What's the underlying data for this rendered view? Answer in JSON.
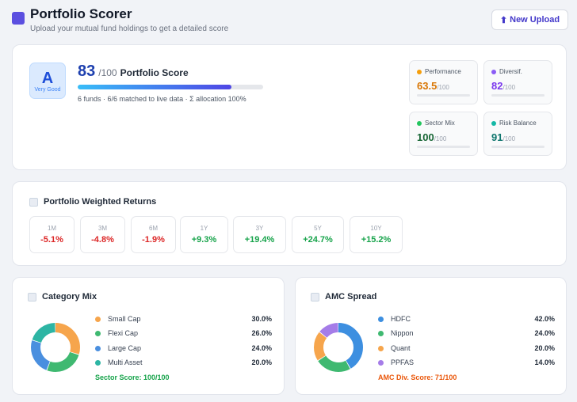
{
  "header": {
    "title": "Portfolio Scorer",
    "subtitle": "Upload your mutual fund holdings to get a detailed score",
    "upload_icon": "up-arrow-icon",
    "upload_label": "New Upload"
  },
  "score": {
    "grade": "A",
    "grade_label": "Very Good",
    "value": "83",
    "max": "/100",
    "title": "Portfolio Score",
    "progress": 0.83,
    "meta": "6 funds · 6/6 matched to live data · Σ allocation 100%"
  },
  "metrics": [
    {
      "label": "Performance",
      "value": "63.5",
      "max": "/100",
      "color": "#f59e0b",
      "value_color": "#d97706"
    },
    {
      "label": "Diversif.",
      "value": "82",
      "max": "/100",
      "color": "#8b5cf6",
      "value_color": "#7c3aed"
    },
    {
      "label": "Sector Mix",
      "value": "100",
      "max": "/100",
      "color": "#22c55e",
      "value_color": "#166534"
    },
    {
      "label": "Risk Balance",
      "value": "91",
      "max": "/100",
      "color": "#14b8a6",
      "value_color": "#0f766e"
    }
  ],
  "returns": {
    "title": "Portfolio Weighted Returns",
    "items": [
      {
        "period": "1M",
        "value": "-5.1%",
        "sign": "neg"
      },
      {
        "period": "3M",
        "value": "-4.8%",
        "sign": "neg"
      },
      {
        "period": "6M",
        "value": "-1.9%",
        "sign": "neg"
      },
      {
        "period": "1Y",
        "value": "+9.3%",
        "sign": "pos"
      },
      {
        "period": "3Y",
        "value": "+19.4%",
        "sign": "pos"
      },
      {
        "period": "5Y",
        "value": "+24.7%",
        "sign": "pos"
      },
      {
        "period": "10Y",
        "value": "+15.2%",
        "sign": "pos"
      }
    ]
  },
  "category": {
    "title": "Category Mix",
    "items": [
      {
        "name": "Small Cap",
        "value": 30.0,
        "label": "30.0%",
        "color": "#f6a54c"
      },
      {
        "name": "Flexi Cap",
        "value": 26.0,
        "label": "26.0%",
        "color": "#3fb971"
      },
      {
        "name": "Large Cap",
        "value": 24.0,
        "label": "24.0%",
        "color": "#4a8fdf"
      },
      {
        "name": "Multi Asset",
        "value": 20.0,
        "label": "20.0%",
        "color": "#2db5a4"
      }
    ],
    "note": "Sector Score: 100/100",
    "note_color": "#16a34a"
  },
  "amc": {
    "title": "AMC Spread",
    "items": [
      {
        "name": "HDFC",
        "value": 42.0,
        "label": "42.0%",
        "color": "#3d8fe0"
      },
      {
        "name": "Nippon",
        "value": 24.0,
        "label": "24.0%",
        "color": "#3fb971"
      },
      {
        "name": "Quant",
        "value": 20.0,
        "label": "20.0%",
        "color": "#f6a54c"
      },
      {
        "name": "PPFAS",
        "value": 14.0,
        "label": "14.0%",
        "color": "#a57ce8"
      }
    ],
    "note": "AMC Div. Score: 71/100",
    "note_color": "#ea580c"
  }
}
